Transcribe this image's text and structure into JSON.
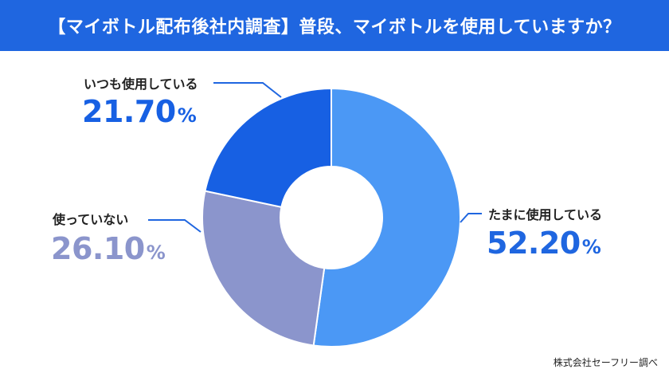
{
  "header": {
    "title": "【マイボトル配布後社内調査】普段、マイボトルを使用していますか？"
  },
  "chart_data": {
    "type": "pie",
    "subtype": "donut",
    "title": "【マイボトル配布後社内調査】普段、マイボトルを使用していますか？",
    "slices": [
      {
        "label": "たまに使用している",
        "value": 52.2,
        "value_text": "52.20",
        "color": "#4b98f5"
      },
      {
        "label": "使っていない",
        "value": 26.1,
        "value_text": "26.10",
        "color": "#8b95cc"
      },
      {
        "label": "いつも使用している",
        "value": 21.7,
        "value_text": "21.70",
        "color": "#1760e3"
      }
    ],
    "unit": "%",
    "start_angle_deg": 0,
    "direction": "clockwise"
  },
  "footer": {
    "source": "株式会社セーフリー調べ"
  }
}
